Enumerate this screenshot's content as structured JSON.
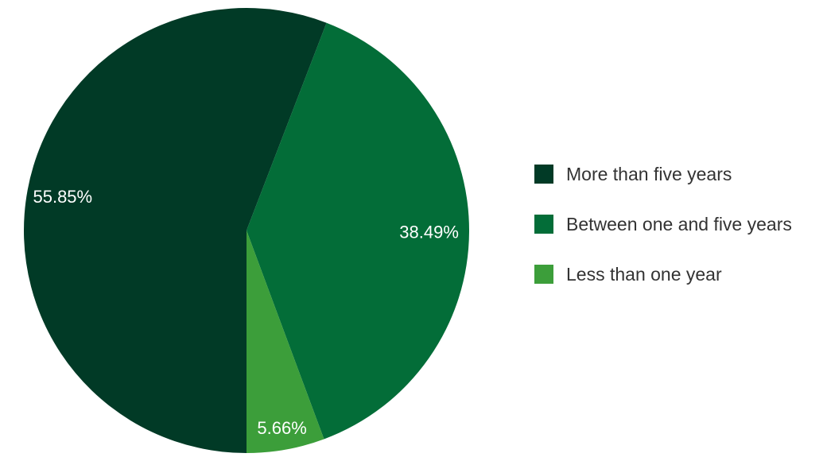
{
  "chart_data": {
    "type": "pie",
    "title": "",
    "categories": [
      "More than five years",
      "Between one and five years",
      "Less than one year"
    ],
    "values": [
      55.85,
      38.49,
      5.66
    ],
    "value_labels": [
      "55.85%",
      "38.49%",
      "5.66%"
    ],
    "colors": [
      "#013a26",
      "#036d38",
      "#3c9e3a"
    ],
    "legend": {
      "placement": "right",
      "entries": [
        "More than five years",
        "Between one and five years",
        "Less than one year"
      ]
    }
  }
}
